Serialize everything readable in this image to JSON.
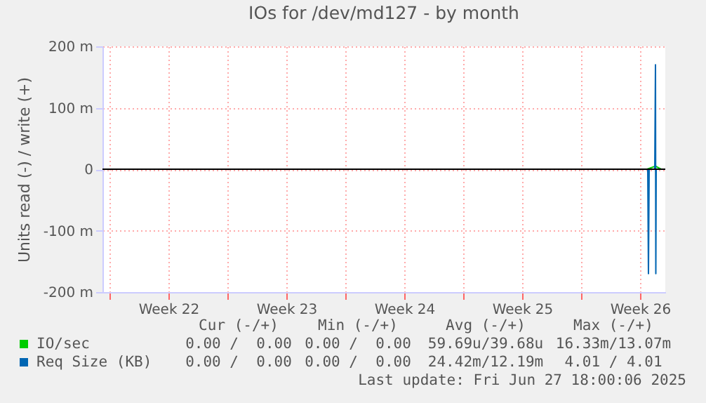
{
  "chart_data": {
    "type": "line",
    "title": "IOs for /dev/md127 - by month",
    "ylabel": "Units read (-) / write (+)",
    "xlim": [
      "2025-05-25T14:00",
      "2025-06-28T00:00"
    ],
    "xticks": [
      {
        "value": "2025-05-26",
        "label": null
      },
      {
        "value": "2025-05-29T12:00",
        "label": "Week 22"
      },
      {
        "value": "2025-06-02",
        "label": null
      },
      {
        "value": "2025-06-05T12:00",
        "label": "Week 23"
      },
      {
        "value": "2025-06-09",
        "label": null
      },
      {
        "value": "2025-06-12T12:00",
        "label": "Week 24"
      },
      {
        "value": "2025-06-16",
        "label": null
      },
      {
        "value": "2025-06-19T12:00",
        "label": "Week 25"
      },
      {
        "value": "2025-06-23",
        "label": null
      },
      {
        "value": "2025-06-26T12:00",
        "label": "Week 26"
      }
    ],
    "ylim": [
      -200,
      200
    ],
    "yticks": [
      {
        "value": -200,
        "label": "-200 m"
      },
      {
        "value": -100,
        "label": "-100 m"
      },
      0,
      {
        "value": 100,
        "label": "100 m"
      },
      {
        "value": 200,
        "label": "200 m"
      }
    ],
    "grid": true,
    "legend": "bottom left",
    "ref_lines": [
      {
        "axis": "y",
        "value": 0,
        "color": "#000000"
      }
    ],
    "series": [
      {
        "name": "IO/sec",
        "color": "#00cc00",
        "x": [
          "2025-06-26T22:00",
          "2025-06-27T10:00",
          "2025-06-27T18:00"
        ],
        "values": [
          0,
          5,
          0
        ]
      },
      {
        "name": "Req Size (KB)",
        "color": "#0066b3",
        "x": [
          "2025-06-26T22:00",
          "2025-06-26T23:00",
          "2025-06-27T00:00",
          "2025-06-27T01:00",
          "2025-06-27T09:00",
          "2025-06-27T10:00",
          "2025-06-27T10:30",
          "2025-06-27T11:00",
          "2025-06-27T18:00"
        ],
        "values": [
          0,
          0,
          -170,
          0,
          0,
          170,
          -170,
          0,
          0
        ]
      }
    ],
    "annotations": [
      "Cur (-/+)",
      "Min (-/+)",
      "Avg (-/+)",
      "Max (-/+)",
      "0.00 /  0.00",
      "0.00 /  0.00",
      "59.69u/39.68u",
      "16.33m/13.07m",
      "0.00 /  0.00",
      "0.00 /  0.00",
      "24.42m/12.19m",
      "4.01 / 4.01",
      "Last update: Fri Jun 27 18:00:06 2025"
    ]
  }
}
